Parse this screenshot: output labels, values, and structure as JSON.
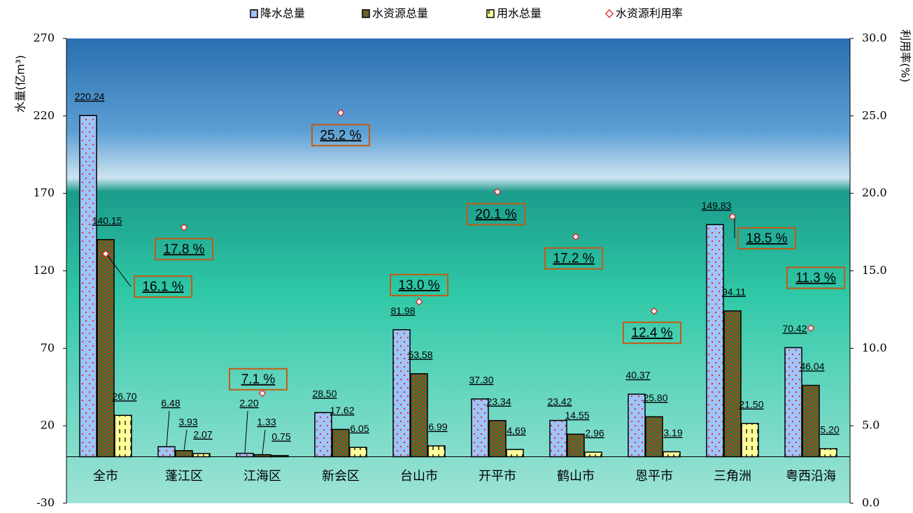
{
  "chart_data": {
    "type": "bar",
    "y_label": "水量(亿m³)",
    "y2_label": "利用率(%)",
    "categories": [
      "全市",
      "蓬江区",
      "江海区",
      "新会区",
      "台山市",
      "开平市",
      "鹤山市",
      "恩平市",
      "三角洲",
      "粤西沿海"
    ],
    "series": [
      {
        "name": "降水总量",
        "type": "bar",
        "color": "#9fc5f8",
        "values": [
          220.24,
          6.48,
          2.2,
          28.5,
          81.98,
          37.3,
          23.42,
          40.37,
          149.83,
          70.42
        ],
        "value_labels": [
          "220.24",
          "6.48",
          "2.20",
          "28.50",
          "81.98",
          "37.30",
          "23.42",
          "40.37",
          "149.83",
          "70.42"
        ]
      },
      {
        "name": "水资源总量",
        "type": "bar",
        "color": "#2e7d32",
        "values": [
          140.15,
          3.93,
          1.33,
          17.62,
          53.58,
          23.34,
          14.55,
          25.8,
          94.11,
          46.04
        ],
        "value_labels": [
          "140.15",
          "3.93",
          "1.33",
          "17.62",
          "53.58",
          "23.34",
          "14.55",
          "25.80",
          "94.11",
          "46.04"
        ]
      },
      {
        "name": "用水总量",
        "type": "bar",
        "color": "#ffff99",
        "values": [
          26.7,
          2.07,
          0.75,
          6.05,
          6.99,
          4.69,
          2.96,
          3.19,
          21.5,
          5.2
        ],
        "value_labels": [
          "26.70",
          "2.07",
          "0.75",
          "6.05",
          "6.99",
          "4.69",
          "2.96",
          "3.19",
          "21.50",
          "5.20"
        ]
      },
      {
        "name": "水资源利用率",
        "type": "scatter",
        "axis": "y2",
        "color": "#e02020",
        "values": [
          16.1,
          17.8,
          7.1,
          25.2,
          13.0,
          20.1,
          17.2,
          12.4,
          18.5,
          11.3
        ],
        "value_labels": [
          "16.1 %",
          "17.8 %",
          "7.1 %",
          "25.2 %",
          "13.0 %",
          "20.1 %",
          "17.2 %",
          "12.4 %",
          "18.5 %",
          "11.3 %"
        ]
      }
    ],
    "ylim": [
      -30,
      270
    ],
    "yticks": [
      -30,
      20,
      70,
      120,
      170,
      220,
      270
    ],
    "y2lim": [
      0,
      30
    ],
    "y2ticks": [
      {
        "value": 0,
        "label": "0.0"
      },
      {
        "value": 5,
        "label": "5.0"
      },
      {
        "value": 10,
        "label": "10.0"
      },
      {
        "value": 15,
        "label": "15.0"
      },
      {
        "value": 20,
        "label": "20.0"
      },
      {
        "value": 25,
        "label": "25.0"
      },
      {
        "value": 30,
        "label": "30.0"
      }
    ],
    "legend": "top"
  }
}
